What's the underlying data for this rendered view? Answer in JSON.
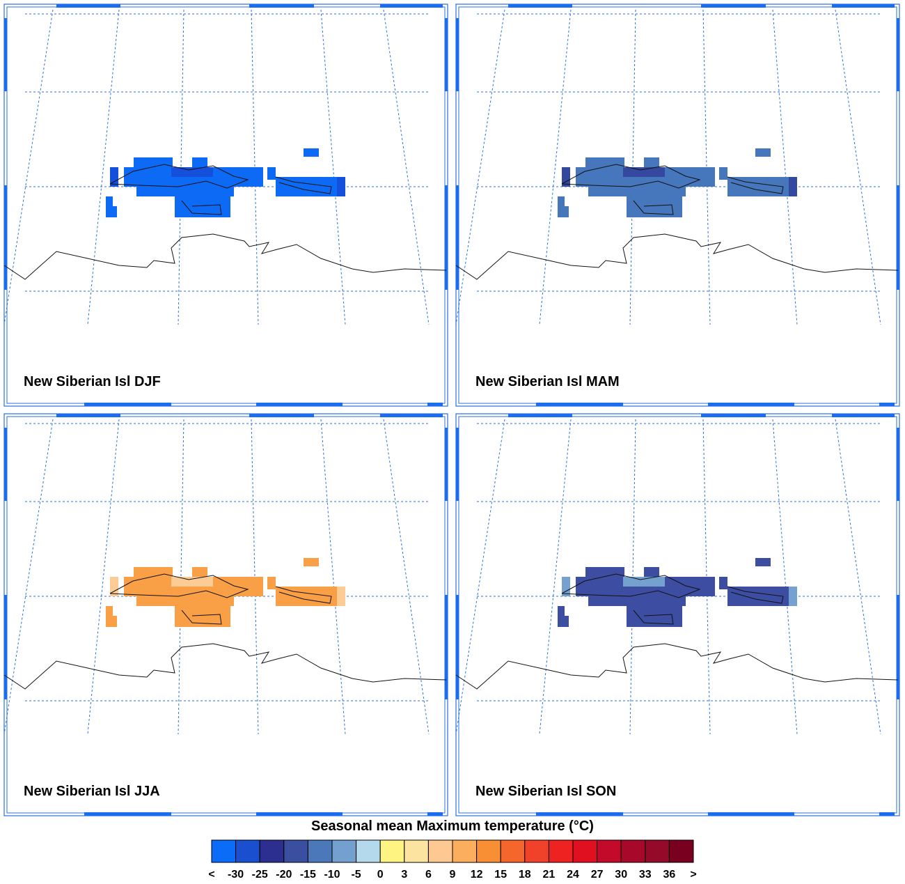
{
  "panels": [
    {
      "title": "New Siberian Isl DJF",
      "colors": [
        "#0d6af5",
        "#1450dc"
      ]
    },
    {
      "title": "New Siberian Isl MAM",
      "colors": [
        "#4676bb",
        "#3448a0"
      ]
    },
    {
      "title": "New Siberian Isl JJA",
      "colors": [
        "#f9a046",
        "#fdcb94"
      ]
    },
    {
      "title": "New Siberian Isl SON",
      "colors": [
        "#3d4ea2",
        "#74a1d0"
      ]
    }
  ],
  "colorbar": {
    "title": "Seasonal mean Maximum temperature (°C)",
    "colors": [
      "#0a6cf7",
      "#1a4fd0",
      "#2c2f8f",
      "#3a4fa0",
      "#4a78b8",
      "#73a0cf",
      "#b4d8ec",
      "#fdf482",
      "#fde3a0",
      "#fdc891",
      "#fbae5e",
      "#f88f35",
      "#f4662c",
      "#f0422a",
      "#ee2220",
      "#e01020",
      "#c40a2a",
      "#a8082a",
      "#950a28",
      "#7a0020"
    ],
    "labels": [
      "<",
      "-30",
      "-25",
      "-20",
      "-15",
      "-10",
      "-5",
      "0",
      "3",
      "6",
      "9",
      "12",
      "15",
      "18",
      "21",
      "24",
      "27",
      "30",
      "33",
      "36",
      ">"
    ]
  }
}
